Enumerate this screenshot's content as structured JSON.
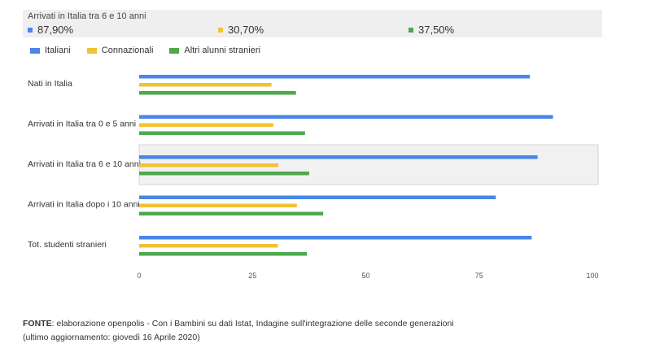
{
  "tooltip": {
    "title": "Arrivati in Italia tra 6 e 10 anni",
    "values": [
      {
        "text": "87,90%",
        "color": "#4a86e8"
      },
      {
        "text": "30,70%",
        "color": "#f1c232"
      },
      {
        "text": "37,50%",
        "color": "#4ea84e"
      }
    ]
  },
  "legend": [
    {
      "label": "Italiani",
      "color": "#4a86e8"
    },
    {
      "label": "Connazionali",
      "color": "#f1c232"
    },
    {
      "label": "Altri alunni stranieri",
      "color": "#4ea84e"
    }
  ],
  "chart_data": {
    "type": "bar",
    "orientation": "horizontal",
    "categories": [
      "Nati in Italia",
      "Arrivati in Italia tra 0 e 5 anni",
      "Arrivati in Italia tra 6 e 10 anni",
      "Arrivati in Italia dopo i 10 anni",
      "Tot. studenti stranieri"
    ],
    "series": [
      {
        "name": "Italiani",
        "color": "#4a86e8",
        "values": [
          86.2,
          91.3,
          87.9,
          78.7,
          86.6
        ]
      },
      {
        "name": "Connazionali",
        "color": "#f1c232",
        "values": [
          29.2,
          29.6,
          30.7,
          34.8,
          30.6
        ]
      },
      {
        "name": "Altri alunni stranieri",
        "color": "#4ea84e",
        "values": [
          34.6,
          36.6,
          37.5,
          40.6,
          37.0
        ]
      }
    ],
    "xlim": [
      0,
      100
    ],
    "xticks": [
      0,
      25,
      50,
      75,
      100
    ],
    "highlighted_category": "Arrivati in Italia tra 6 e 10 anni",
    "grid": false
  },
  "footer": {
    "source_label": "FONTE",
    "source_text": ": elaborazione openpolis - Con i Bambini su dati Istat, Indagine sull'integrazione delle seconde generazioni",
    "update_text": "(ultimo aggiornamento: giovedì 16 Aprile 2020)"
  }
}
